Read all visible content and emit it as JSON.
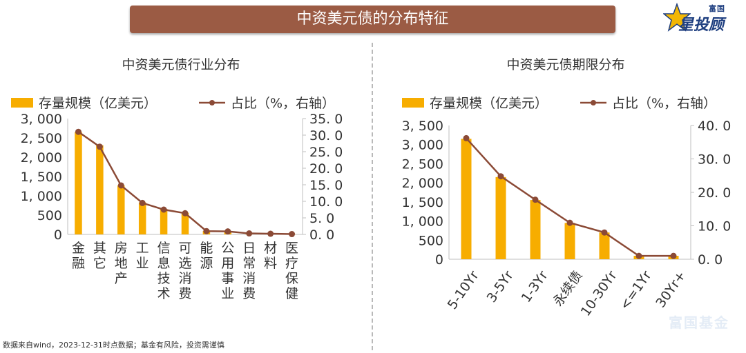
{
  "header": {
    "title": "中资美元债的分布特征"
  },
  "logo": {
    "top_text": "富国",
    "main_text": "星投顾"
  },
  "watermark": {
    "text": "富国基金"
  },
  "footnote": {
    "text": "数据来自wind，2023-12-31时点数据；基金有风险，投资需谨慎"
  },
  "colors": {
    "bar": "#f7ad00",
    "line": "#8b4a36",
    "axis": "#bfbfbf",
    "banner": "#9b5b44"
  },
  "chart_data": [
    {
      "type": "bar",
      "title": "中资美元债行业分布",
      "legend_placement": "top",
      "categories": [
        "金融",
        "其它",
        "房地产",
        "工业",
        "信息技术",
        "可选消费",
        "能源",
        "公用事业",
        "日常消费",
        "材料",
        "医疗保健"
      ],
      "series": [
        {
          "name": "存量规模（亿美元）",
          "type": "bar",
          "axis": "left",
          "values": [
            2650,
            2310,
            1270,
            830,
            660,
            560,
            90,
            80,
            30,
            20,
            10
          ]
        },
        {
          "name": "占比（%，右轴）",
          "type": "line",
          "axis": "right",
          "values": [
            31.0,
            26.5,
            14.8,
            9.5,
            7.5,
            6.4,
            1.0,
            0.9,
            0.3,
            0.2,
            0.1
          ]
        }
      ],
      "ylim_left": [
        0,
        3000
      ],
      "yticks_left": [
        "3, 000",
        "2, 500",
        "2, 000",
        "1, 500",
        "1, 000",
        "500",
        "0"
      ],
      "ylim_right": [
        0,
        35
      ],
      "yticks_right": [
        "35. 0",
        "30. 0",
        "25. 0",
        "20. 0",
        "15. 0",
        "10. 0",
        "5. 0",
        "0. 0"
      ],
      "grid": false
    },
    {
      "type": "bar",
      "title": "中资美元债期限分布",
      "legend_placement": "top",
      "categories": [
        "5-10Yr",
        "3-5Yr",
        "1-3Yr",
        "永续债",
        "10-30Yr",
        "<=1Yr",
        "30Yr+"
      ],
      "series": [
        {
          "name": "存量规模（亿美元）",
          "type": "bar",
          "axis": "left",
          "values": [
            3150,
            2150,
            1550,
            950,
            700,
            90,
            90
          ]
        },
        {
          "name": "占比（%，右轴）",
          "type": "line",
          "axis": "right",
          "values": [
            36.2,
            24.8,
            17.8,
            10.9,
            8.0,
            1.0,
            1.0
          ]
        }
      ],
      "ylim_left": [
        0,
        3500
      ],
      "yticks_left": [
        "3, 500",
        "3, 000",
        "2, 500",
        "2, 000",
        "1, 500",
        "1, 000",
        "500",
        "0"
      ],
      "ylim_right": [
        0,
        40
      ],
      "yticks_right": [
        "40. 0",
        "30. 0",
        "20. 0",
        "10. 0",
        "0. 0"
      ],
      "grid": false
    }
  ]
}
